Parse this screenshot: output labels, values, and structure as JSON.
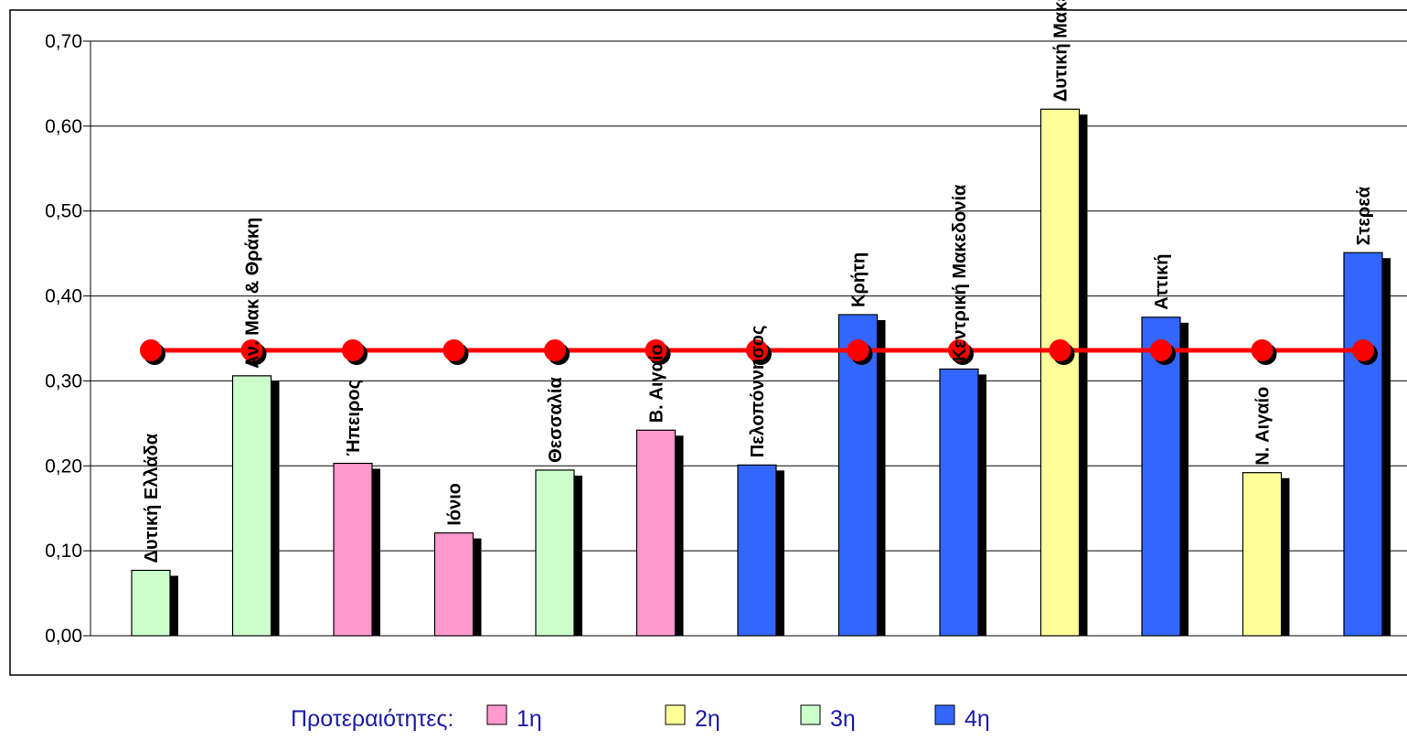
{
  "chart_data": {
    "type": "bar",
    "categories": [
      "Δυτική Ελλάδα",
      "Αν. Μακ & Θράκη",
      "Ήπειρος",
      "Ιόνιο",
      "Θεσσαλία",
      "Β. Αιγαίο",
      "Πελοπόννησος",
      "Κρήτη",
      "Κεντρική Μακεδονία",
      "Δυτική Μακεδονία",
      "Αττική",
      "Ν. Αιγαίο",
      "Στερεά"
    ],
    "values": [
      0.077,
      0.306,
      0.203,
      0.121,
      0.195,
      0.242,
      0.201,
      0.378,
      0.314,
      0.62,
      0.375,
      0.192,
      0.451
    ],
    "priority": [
      "3η",
      "3η",
      "1η",
      "1η",
      "3η",
      "1η",
      "4η",
      "4η",
      "4η",
      "2η",
      "4η",
      "2η",
      "4η"
    ],
    "reference_line": {
      "value": 0.336,
      "color": "#ff0000"
    },
    "ylim": [
      0,
      0.7
    ],
    "yticks": [
      0,
      0.1,
      0.2,
      0.3,
      0.4,
      0.5,
      0.6,
      0.7
    ],
    "ytick_labels": [
      "0,00",
      "0,10",
      "0,20",
      "0,30",
      "0,40",
      "0,50",
      "0,60",
      "0,70"
    ],
    "grid": true,
    "title": "",
    "xlabel": "",
    "ylabel": "",
    "legend": {
      "placement": "bottom-center",
      "title": "Προτεραιότητες:",
      "entries": [
        {
          "label": "1η",
          "color": "#ff99cc"
        },
        {
          "label": "2η",
          "color": "#ffff99"
        },
        {
          "label": "3η",
          "color": "#ccffcc"
        },
        {
          "label": "4η",
          "color": "#3366ff"
        }
      ]
    }
  }
}
